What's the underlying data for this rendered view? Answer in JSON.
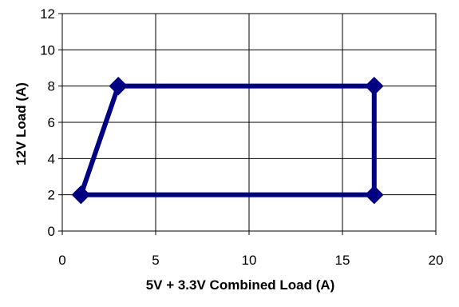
{
  "chart_data": {
    "type": "line",
    "title": "",
    "xlabel": "5V + 3.3V Combined Load (A)",
    "ylabel": "12V Load (A)",
    "xlim": [
      0,
      20
    ],
    "ylim": [
      0,
      12
    ],
    "xticks": [
      0,
      5,
      10,
      15,
      20
    ],
    "yticks": [
      0,
      2,
      4,
      6,
      8,
      10,
      12
    ],
    "grid": true,
    "legend": "none",
    "series": [
      {
        "color": "#000080",
        "marker": "diamond",
        "points": [
          {
            "x": 1,
            "y": 2
          },
          {
            "x": 3,
            "y": 8
          },
          {
            "x": 16.7,
            "y": 8
          },
          {
            "x": 16.7,
            "y": 2
          },
          {
            "x": 1,
            "y": 2
          }
        ]
      }
    ]
  }
}
